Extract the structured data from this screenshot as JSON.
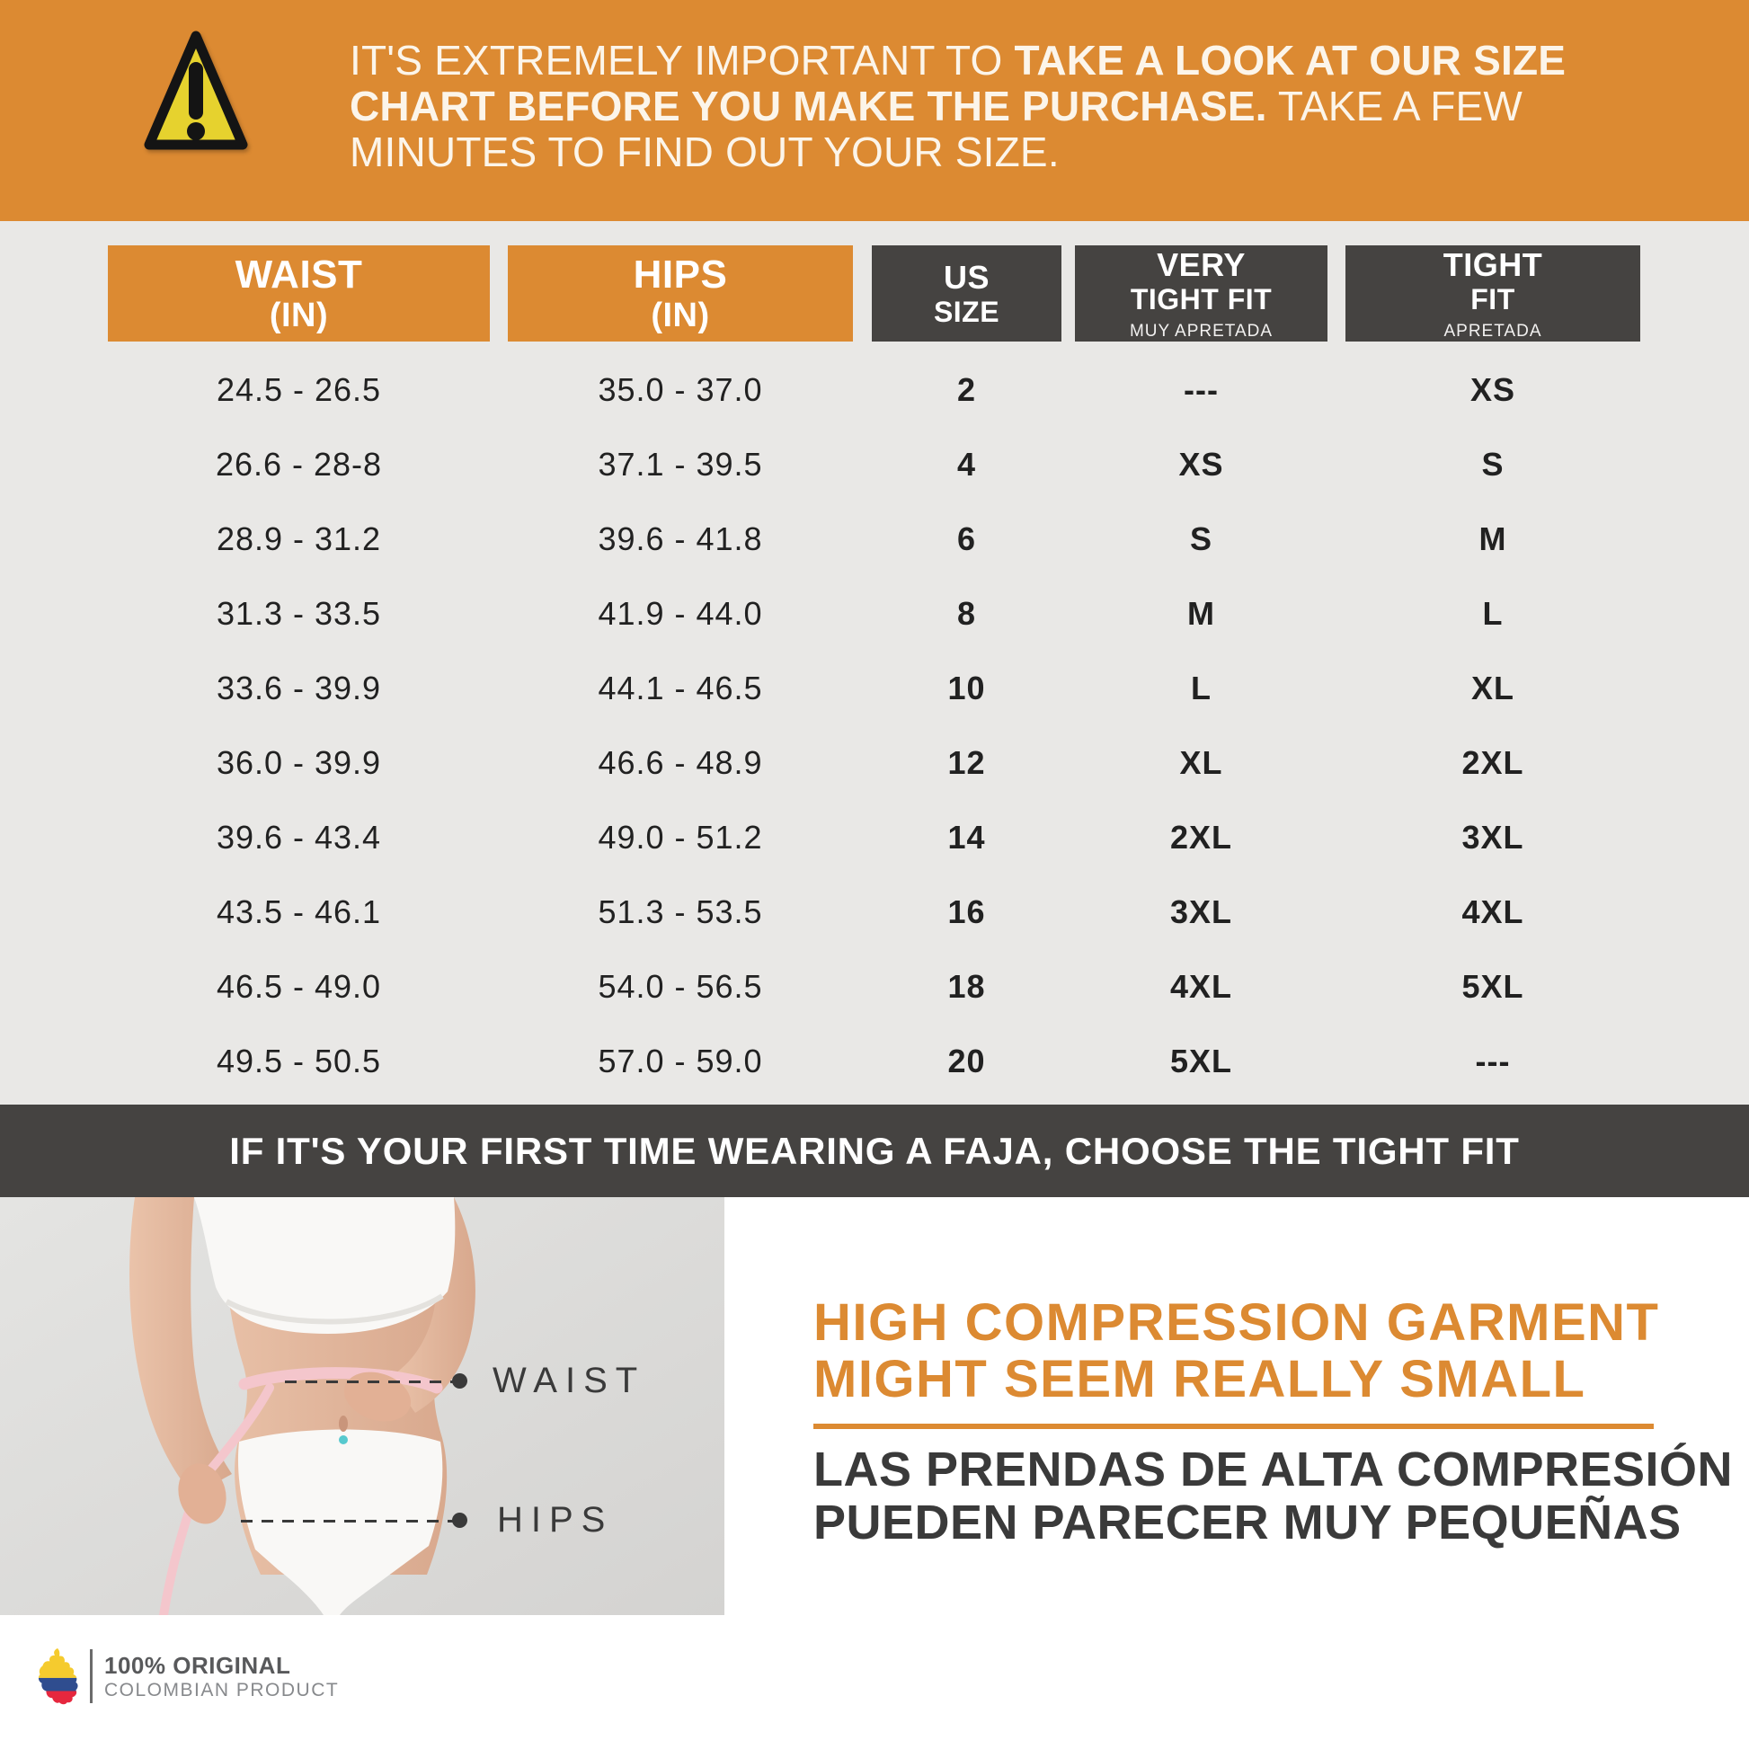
{
  "top_banner": {
    "bg_color": "#DC8A32",
    "lines": [
      [
        {
          "text": "IT'S EXTREMELY IMPORTANT TO ",
          "bold": false
        },
        {
          "text": "TAKE A LOOK AT OUR SIZE",
          "bold": true
        }
      ],
      [
        {
          "text": "CHART BEFORE YOU MAKE THE PURCHASE.",
          "bold": true
        },
        {
          "text": " TAKE A FEW",
          "bold": false
        }
      ],
      [
        {
          "text": "MINUTES TO FIND OUT YOUR SIZE.",
          "bold": false
        }
      ]
    ]
  },
  "size_chart": {
    "headers": [
      {
        "line1": "WAIST",
        "line2": "(IN)",
        "subtitle": "",
        "theme": "orange"
      },
      {
        "line1": "HIPS",
        "line2": "(IN)",
        "subtitle": "",
        "theme": "orange"
      },
      {
        "line1": "US",
        "line2": "SIZE",
        "subtitle": "",
        "theme": "dark"
      },
      {
        "line1": "VERY",
        "line2": "TIGHT FIT",
        "subtitle": "MUY APRETADA",
        "theme": "dark"
      },
      {
        "line1": "TIGHT",
        "line2": "FIT",
        "subtitle": "APRETADA",
        "theme": "dark"
      }
    ],
    "rows": [
      [
        "24.5 - 26.5",
        "35.0 - 37.0",
        "2",
        "---",
        "XS"
      ],
      [
        "26.6 - 28-8",
        "37.1 - 39.5",
        "4",
        "XS",
        "S"
      ],
      [
        "28.9 - 31.2",
        "39.6 - 41.8",
        "6",
        "S",
        "M"
      ],
      [
        "31.3 - 33.5",
        "41.9 - 44.0",
        "8",
        "M",
        "L"
      ],
      [
        "33.6 - 39.9",
        "44.1 - 46.5",
        "10",
        "L",
        "XL"
      ],
      [
        "36.0 - 39.9",
        "46.6 - 48.9",
        "12",
        "XL",
        "2XL"
      ],
      [
        "39.6 - 43.4",
        "49.0 - 51.2",
        "14",
        "2XL",
        "3XL"
      ],
      [
        "43.5 - 46.1",
        "51.3 - 53.5",
        "16",
        "3XL",
        "4XL"
      ],
      [
        "46.5 - 49.0",
        "54.0 - 56.5",
        "18",
        "4XL",
        "5XL"
      ],
      [
        "49.5 - 50.5",
        "57.0 - 59.0",
        "20",
        "5XL",
        "---"
      ]
    ]
  },
  "mid_banner": {
    "bg_color": "#454341",
    "text": "IF IT'S YOUR FIRST TIME WEARING A FAJA, CHOOSE THE TIGHT FIT"
  },
  "measurement_guide": {
    "waist_label": "WAIST",
    "hips_label": "HIPS"
  },
  "compression_note": {
    "accent_color": "#DC8A32",
    "title_line1": "HIGH COMPRESSION GARMENT",
    "title_line2": "MIGHT SEEM REALLY SMALL",
    "subtitle_line1": "LAS PRENDAS DE ALTA COMPRESIÓN",
    "subtitle_line2": "PUEDEN PARECER MUY PEQUEÑAS"
  },
  "footer_logo": {
    "line1": "100% ORIGINAL",
    "line2": "COLOMBIAN PRODUCT",
    "flag_colors": {
      "yellow": "#F5CB2E",
      "blue": "#2F4D8F",
      "red": "#E6273E"
    }
  }
}
